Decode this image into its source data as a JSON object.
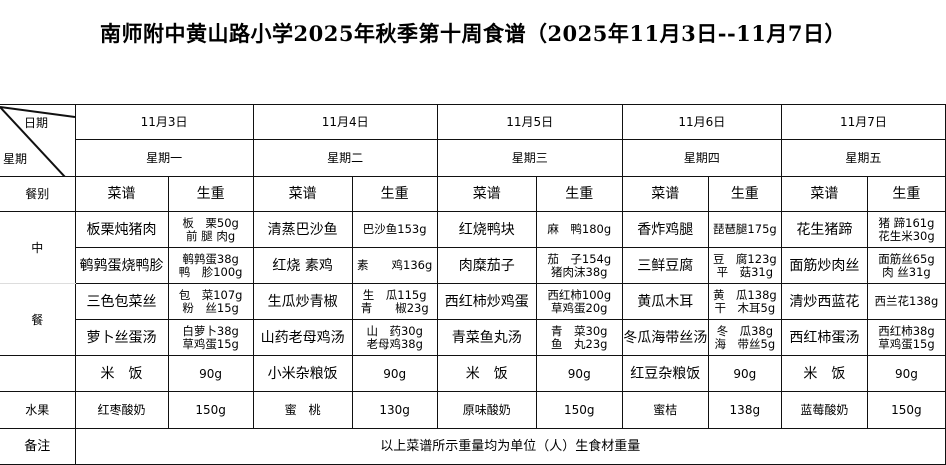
{
  "title": "南师附中黄山路小学2025年秋季第十周食谱（2025年11月3日--11月7日）",
  "header": {
    "date_label": "日期",
    "weekday_label": "星期",
    "meal_label": "餐别",
    "menu_label": "菜谱",
    "weight_label": "生重",
    "lunch_top": "中",
    "lunch_bottom": "餐",
    "fruit_label": "水果",
    "note_label": "备注"
  },
  "note": "以上菜谱所示重量均为单位（人）生食材重量",
  "days": [
    {
      "date": "11月3日",
      "weekday": "星期一",
      "dishes": [
        {
          "name": "板栗炖猪肉",
          "weight": [
            "板　栗50g",
            "前 腿 肉g"
          ]
        },
        {
          "name": "鹌鹑蛋烧鸭胗",
          "weight": [
            "鹌鹑蛋38g",
            "鸭　胗100g"
          ]
        },
        {
          "name": "三色包菜丝",
          "weight": [
            "包　菜107g",
            "粉　丝15g"
          ]
        },
        {
          "name": "萝卜丝蛋汤",
          "weight": [
            "白萝卜38g",
            "草鸡蛋15g"
          ]
        }
      ],
      "staple": {
        "name": "米　饭",
        "weight": "90g"
      },
      "fruit": {
        "name": "红枣酸奶",
        "weight": "150g"
      }
    },
    {
      "date": "11月4日",
      "weekday": "星期二",
      "dishes": [
        {
          "name": "清蒸巴沙鱼",
          "weight": [
            "巴沙鱼153g"
          ]
        },
        {
          "name": "红烧 素鸡",
          "weight": [
            "素　　鸡136g"
          ]
        },
        {
          "name": "生瓜炒青椒",
          "weight": [
            "生　瓜115g",
            "青　　椒23g"
          ]
        },
        {
          "name": "山药老母鸡汤",
          "weight": [
            "山　药30g",
            "老母鸡38g"
          ]
        }
      ],
      "staple": {
        "name": "小米杂粮饭",
        "weight": "90g"
      },
      "fruit": {
        "name": "蜜　桃",
        "weight": "130g"
      }
    },
    {
      "date": "11月5日",
      "weekday": "星期三",
      "dishes": [
        {
          "name": "红烧鸭块",
          "weight": [
            "麻　鸭180g"
          ]
        },
        {
          "name": "肉糜茄子",
          "weight": [
            "茄　子154g",
            "猪肉沫38g"
          ]
        },
        {
          "name": "西红柿炒鸡蛋",
          "weight": [
            "西红柿100g",
            "草鸡蛋20g"
          ]
        },
        {
          "name": "青菜鱼丸汤",
          "weight": [
            "青　菜30g",
            "鱼　丸23g"
          ]
        }
      ],
      "staple": {
        "name": "米　饭",
        "weight": "90g"
      },
      "fruit": {
        "name": "原味酸奶",
        "weight": "150g"
      }
    },
    {
      "date": "11月6日",
      "weekday": "星期四",
      "dishes": [
        {
          "name": "香炸鸡腿",
          "weight": [
            "琵琶腿175g"
          ]
        },
        {
          "name": "三鲜豆腐",
          "weight": [
            "豆　腐123g",
            "平　菇31g"
          ]
        },
        {
          "name": "黄瓜木耳",
          "weight": [
            "黄　瓜138g",
            "干　木耳5g"
          ]
        },
        {
          "name": "冬瓜海带丝汤",
          "weight": [
            "冬　瓜38g",
            "海　带丝5g"
          ]
        }
      ],
      "staple": {
        "name": "红豆杂粮饭",
        "weight": "90g"
      },
      "fruit": {
        "name": "蜜桔",
        "weight": "138g"
      }
    },
    {
      "date": "11月7日",
      "weekday": "星期五",
      "dishes": [
        {
          "name": "花生猪蹄",
          "weight": [
            "猪 蹄161g",
            "花生米30g"
          ]
        },
        {
          "name": "面筋炒肉丝",
          "weight": [
            "面筋丝65g",
            "肉 丝31g"
          ]
        },
        {
          "name": "清炒西蓝花",
          "weight": [
            "西兰花138g"
          ]
        },
        {
          "name": "西红柿蛋汤",
          "weight": [
            "西红柿38g",
            "草鸡蛋15g"
          ]
        }
      ],
      "staple": {
        "name": "米　饭",
        "weight": "90g"
      },
      "fruit": {
        "name": "蓝莓酸奶",
        "weight": "150g"
      }
    }
  ]
}
